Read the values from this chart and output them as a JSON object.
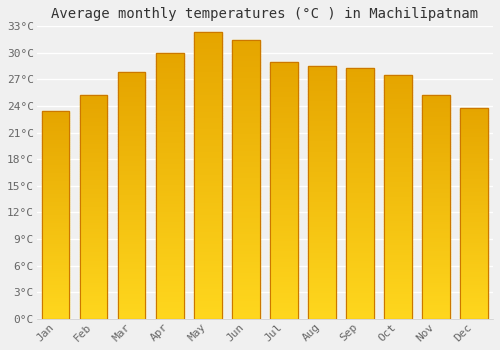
{
  "title": "Average monthly temperatures (°C ) in Machilīpatnam",
  "months": [
    "Jan",
    "Feb",
    "Mar",
    "Apr",
    "May",
    "Jun",
    "Jul",
    "Aug",
    "Sep",
    "Oct",
    "Nov",
    "Dec"
  ],
  "temperatures": [
    23.5,
    25.2,
    27.8,
    30.0,
    32.3,
    31.5,
    29.0,
    28.5,
    28.3,
    27.5,
    25.3,
    23.8
  ],
  "bar_color": "#FFA820",
  "bar_edge_color": "#CC7000",
  "ylim": [
    0,
    33
  ],
  "yticks": [
    0,
    3,
    6,
    9,
    12,
    15,
    18,
    21,
    24,
    27,
    30,
    33
  ],
  "background_color": "#f0f0f0",
  "plot_bg_color": "#f0f0f0",
  "grid_color": "#ffffff",
  "title_fontsize": 10,
  "tick_fontsize": 8,
  "title_color": "#333333",
  "tick_color": "#666666"
}
